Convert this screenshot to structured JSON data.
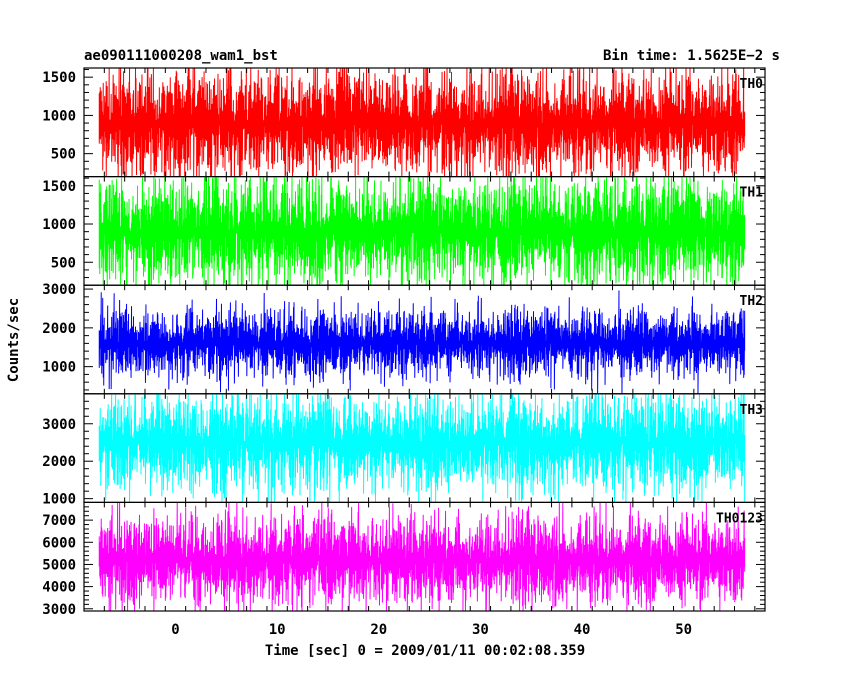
{
  "header": {
    "left": "ae090111000208_wam1_bst",
    "right": "Bin time: 1.5625E−2 s"
  },
  "chart_data": {
    "type": "line",
    "xlabel": "Time [sec] 0 = 2009/01/11 00:02:08.359",
    "ylabel": "Counts/sec",
    "xlim": [
      -9,
      58
    ],
    "xticks": [
      0,
      10,
      20,
      30,
      40,
      50
    ],
    "xrange_data": [
      -7.5,
      56
    ],
    "panels": [
      {
        "name": "TH0",
        "color": "#ff0000",
        "ylim": [
          200,
          1620
        ],
        "yticks": [
          500,
          1000,
          1500
        ],
        "mean": 900,
        "noise": 380,
        "min": 150,
        "max": 1650
      },
      {
        "name": "TH1",
        "color": "#00ff00",
        "ylim": [
          200,
          1620
        ],
        "yticks": [
          500,
          1000,
          1500
        ],
        "mean": 900,
        "noise": 380,
        "min": 150,
        "max": 1650
      },
      {
        "name": "TH2",
        "color": "#0000ff",
        "ylim": [
          300,
          3100
        ],
        "yticks": [
          1000,
          2000,
          3000
        ],
        "mean": 1600,
        "noise": 480,
        "min": 300,
        "max": 3200
      },
      {
        "name": "TH3",
        "color": "#00ffff",
        "ylim": [
          900,
          3800
        ],
        "yticks": [
          1000,
          2000,
          3000
        ],
        "mean": 2500,
        "noise": 700,
        "min": 900,
        "max": 3900
      },
      {
        "name": "TH0123",
        "color": "#ff00ff",
        "ylim": [
          2900,
          7800
        ],
        "yticks": [
          3000,
          4000,
          5000,
          6000,
          7000
        ],
        "mean": 5200,
        "noise": 1100,
        "min": 2900,
        "max": 7900
      }
    ]
  }
}
